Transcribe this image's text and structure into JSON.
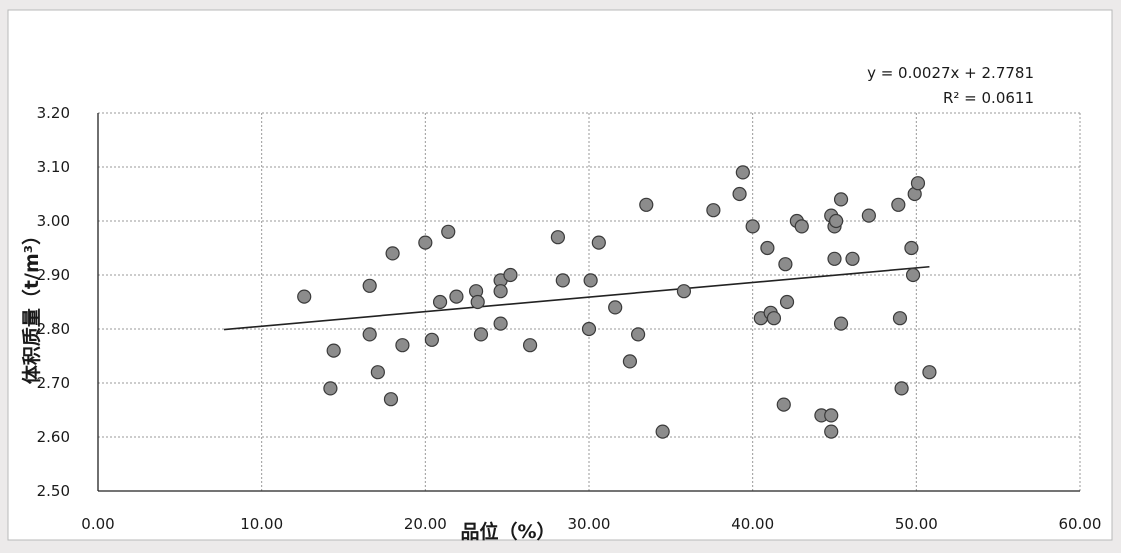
{
  "chart_data": {
    "type": "scatter",
    "title": "",
    "xlabel": "品位（%）",
    "ylabel": "体积质量（t/m³）",
    "xlim": [
      0,
      60
    ],
    "ylim": [
      2.5,
      3.2
    ],
    "x_ticks": [
      "0.00",
      "10.00",
      "20.00",
      "30.00",
      "40.00",
      "50.00",
      "60.00"
    ],
    "y_ticks": [
      "2.50",
      "2.60",
      "2.70",
      "2.80",
      "2.90",
      "3.00",
      "3.10",
      "3.20"
    ],
    "grid": true,
    "point_color": "#8c8c8c",
    "trendline": {
      "type": "linear",
      "equation": "y = 0.0027x + 2.7781",
      "r_squared": "R² = 0.0611",
      "slope": 0.0027,
      "intercept": 2.7781,
      "x_range": [
        7.7,
        50.8
      ]
    },
    "series": [
      {
        "points": [
          [
            12.6,
            2.86
          ],
          [
            14.2,
            2.69
          ],
          [
            14.4,
            2.76
          ],
          [
            16.6,
            2.88
          ],
          [
            16.6,
            2.79
          ],
          [
            17.1,
            2.72
          ],
          [
            17.9,
            2.67
          ],
          [
            18.0,
            2.94
          ],
          [
            18.6,
            2.77
          ],
          [
            20.0,
            2.96
          ],
          [
            20.4,
            2.78
          ],
          [
            20.9,
            2.85
          ],
          [
            21.4,
            2.98
          ],
          [
            21.9,
            2.86
          ],
          [
            23.1,
            2.87
          ],
          [
            23.2,
            2.85
          ],
          [
            23.4,
            2.79
          ],
          [
            24.6,
            2.89
          ],
          [
            24.6,
            2.87
          ],
          [
            24.6,
            2.81
          ],
          [
            25.2,
            2.9
          ],
          [
            26.4,
            2.77
          ],
          [
            28.1,
            2.97
          ],
          [
            28.4,
            2.89
          ],
          [
            30.0,
            2.8
          ],
          [
            30.1,
            2.89
          ],
          [
            30.6,
            2.96
          ],
          [
            31.6,
            2.84
          ],
          [
            32.5,
            2.74
          ],
          [
            33.0,
            2.79
          ],
          [
            33.5,
            3.03
          ],
          [
            34.5,
            2.61
          ],
          [
            35.8,
            2.87
          ],
          [
            37.6,
            3.02
          ],
          [
            39.2,
            3.05
          ],
          [
            39.4,
            3.09
          ],
          [
            40.0,
            2.99
          ],
          [
            40.5,
            2.82
          ],
          [
            40.9,
            2.95
          ],
          [
            41.1,
            2.83
          ],
          [
            41.3,
            2.82
          ],
          [
            41.9,
            2.66
          ],
          [
            42.0,
            2.92
          ],
          [
            42.1,
            2.85
          ],
          [
            42.7,
            3.0
          ],
          [
            43.0,
            2.99
          ],
          [
            44.2,
            2.64
          ],
          [
            44.8,
            2.64
          ],
          [
            44.8,
            2.61
          ],
          [
            44.8,
            3.01
          ],
          [
            45.0,
            2.99
          ],
          [
            45.0,
            2.93
          ],
          [
            45.1,
            3.0
          ],
          [
            45.4,
            3.04
          ],
          [
            45.4,
            2.81
          ],
          [
            46.1,
            2.93
          ],
          [
            47.1,
            3.01
          ],
          [
            48.9,
            3.03
          ],
          [
            49.0,
            2.82
          ],
          [
            49.1,
            2.69
          ],
          [
            49.7,
            2.95
          ],
          [
            49.8,
            2.9
          ],
          [
            49.9,
            3.05
          ],
          [
            50.1,
            3.07
          ],
          [
            50.8,
            2.72
          ]
        ]
      }
    ]
  }
}
